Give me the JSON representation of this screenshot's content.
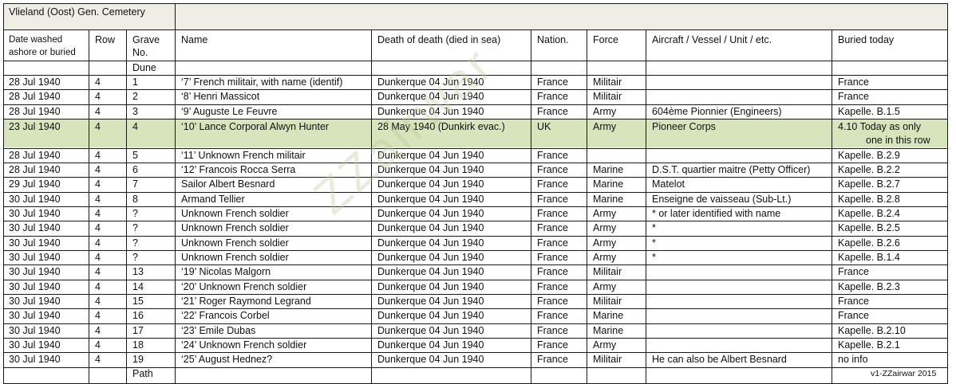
{
  "title": "Vlieland (Oost) Gen. Cemetery",
  "headers": [
    "Date washed ashore or buried",
    "Row",
    "Grave No.",
    "Name",
    "Death of death (died in sea)",
    "Nation.",
    "Force",
    "Aircraft / Vessel / Unit / etc.",
    "Buried today"
  ],
  "header_lines": {
    "date": [
      "Date washed",
      "ashore or buried"
    ],
    "grave": [
      "Grave",
      "No."
    ]
  },
  "section_top": "Dune",
  "section_bottom": "Path",
  "rows": [
    [
      "28 Jul  1940",
      "4",
      "1",
      "‘7’ French militair, with name (identif)",
      "Dunkerque 04 Jun 1940",
      "France",
      "Militair",
      "",
      "France"
    ],
    [
      "28 Jul  1940",
      "4",
      "2",
      "‘8’ Henri Massicot",
      "Dunkerque 04 Jun 1940",
      "France",
      "Militair",
      "",
      "France"
    ],
    [
      "28 Jul 1940",
      "4",
      "3",
      "‘9’ Auguste Le Feuvre",
      "Dunkerque 04 Jun 1940",
      "France",
      "Army",
      "604ème Pionnier (Engineers)",
      "Kapelle. B.1.5"
    ],
    [
      "23 Jul 1940",
      "4",
      "4",
      "‘10’ Lance Corporal Alwyn Hunter",
      "28 May 1940 (Dunkirk evac.)",
      "UK",
      "Army",
      "Pioneer Corps",
      "4.10   Today as only"
    ],
    [
      "28 Jul  1940",
      "4",
      "5",
      "‘11’ Unknown French militair",
      "Dunkerque 04 Jun 1940",
      "France",
      "",
      "",
      "Kapelle. B.2.9"
    ],
    [
      "28 Jul  1940",
      "4",
      "6",
      "‘12’ Francois Rocca Serra",
      "Dunkerque 04 Jun 1940",
      "France",
      "Marine",
      "D.S.T. quartier maitre (Petty Officer)",
      "Kapelle. B.2.2"
    ],
    [
      "29 Jul  1940",
      "4",
      "7",
      "Sailor Albert Besnard",
      "Dunkerque 04 Jun 1940",
      "France",
      "Marine",
      "Matelot",
      "Kapelle. B.2.7"
    ],
    [
      "30 Jul  1940",
      "4",
      "8",
      "Armand Tellier",
      "Dunkerque 04 Jun 1940",
      "France",
      "Marine",
      "Enseigne de vaisseau (Sub-Lt.)",
      "Kapelle. B.2.8"
    ],
    [
      "30 Jul  1940",
      "4",
      "?",
      "Unknown French soldier",
      "Dunkerque 04 Jun 1940",
      "France",
      "Army",
      "*  or later identified with name",
      "Kapelle. B.2.4"
    ],
    [
      "30 Jul  1940",
      "4",
      "?",
      "Unknown French soldier",
      "Dunkerque 04 Jun 1940",
      "France",
      "Army",
      "*",
      "Kapelle. B.2.5"
    ],
    [
      "30 Jul  1940",
      "4",
      "?",
      "Unknown French soldier",
      "Dunkerque 04 Jun 1940",
      "France",
      "Army",
      "*",
      "Kapelle. B.2.6"
    ],
    [
      "30 Jul  1940",
      "4",
      "?",
      "Unknown French soldier",
      "Dunkerque 04 Jun 1940",
      "France",
      "Army",
      "*",
      "Kapelle. B.1.4"
    ],
    [
      "30 Jul  1940",
      "4",
      "13",
      "‘19’ Nicolas Malgorn",
      "Dunkerque 04 Jun 1940",
      "France",
      "Militair",
      "",
      "France"
    ],
    [
      "30 Jul  1940",
      "4",
      "14",
      "‘20’ Unknown French soldier",
      "Dunkerque 04 Jun 1940",
      "France",
      "Army",
      "",
      "Kapelle. B.2.3"
    ],
    [
      "30 Jul  1940",
      "4",
      "15",
      "‘21’ Roger Raymond Legrand",
      "Dunkerque 04 Jun 1940",
      "France",
      "Militair",
      "",
      "France"
    ],
    [
      "30 Jul  1940",
      "4",
      "16",
      "‘22’ Francois Corbel",
      "Dunkerque 04 Jun 1940",
      "France",
      "Marine",
      "",
      "France"
    ],
    [
      "30 Jul  1940",
      "4",
      "17",
      "‘23’ Emile Dubas",
      "Dunkerque 04 Jun 1940",
      "France",
      "Marine",
      "",
      "Kapelle. B.2.10"
    ],
    [
      "30 Jul  1940",
      "4",
      "18",
      "‘24’ Unknown French soldier",
      "Dunkerque 04 Jun 1940",
      "France",
      "Army",
      "",
      "Kapelle. B.2.1"
    ],
    [
      "30 Jul  1940",
      "4",
      "19",
      "‘25’ August Hednez?",
      "Dunkerque 04 Jun 1940",
      "France",
      "Militair",
      "He can also be Albert Besnard",
      "no info"
    ]
  ],
  "highlight_row_extra": "one in this row",
  "footer_note": "v1-ZZairwar 2015",
  "watermark_text": "ZZairwar",
  "colors": {
    "title_bg": "#eeede6",
    "highlight_bg": "#d8e4bc",
    "watermark": "#bec896"
  }
}
